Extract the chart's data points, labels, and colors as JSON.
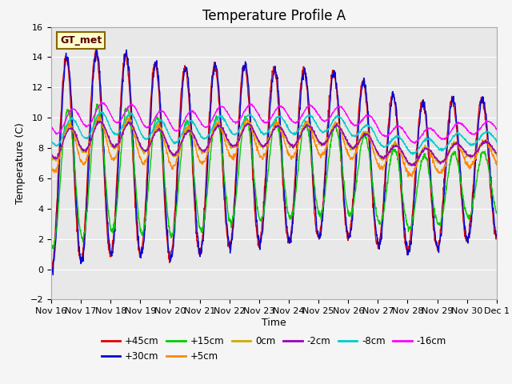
{
  "title": "Temperature Profile A",
  "xlabel": "Time",
  "ylabel": "Temperature (C)",
  "ylim": [
    -2,
    16
  ],
  "xlim": [
    0,
    15
  ],
  "colors": [
    "#dd0000",
    "#0000dd",
    "#00cc00",
    "#ff8800",
    "#ccaa00",
    "#9900bb",
    "#00cccc",
    "#ff00ff"
  ],
  "labels": [
    "+45cm",
    "+30cm",
    "+15cm",
    "+5cm",
    "0cm",
    "-2cm",
    "-8cm",
    "-16cm"
  ],
  "legend_label": "GT_met",
  "xtick_labels": [
    "Nov 16",
    "Nov 17",
    "Nov 18",
    "Nov 19",
    "Nov 20",
    "Nov 21",
    "Nov 22",
    "Nov 23",
    "Nov 24",
    "Nov 25",
    "Nov 26",
    "Nov 27",
    "Nov 28",
    "Nov 29",
    "Nov 30",
    "Dec 1"
  ],
  "title_fontsize": 12,
  "axis_fontsize": 9,
  "legend_fontsize": 8.5,
  "linewidth": 1.0,
  "fig_bg": "#f5f5f5",
  "ax_bg": "#e8e8e8"
}
